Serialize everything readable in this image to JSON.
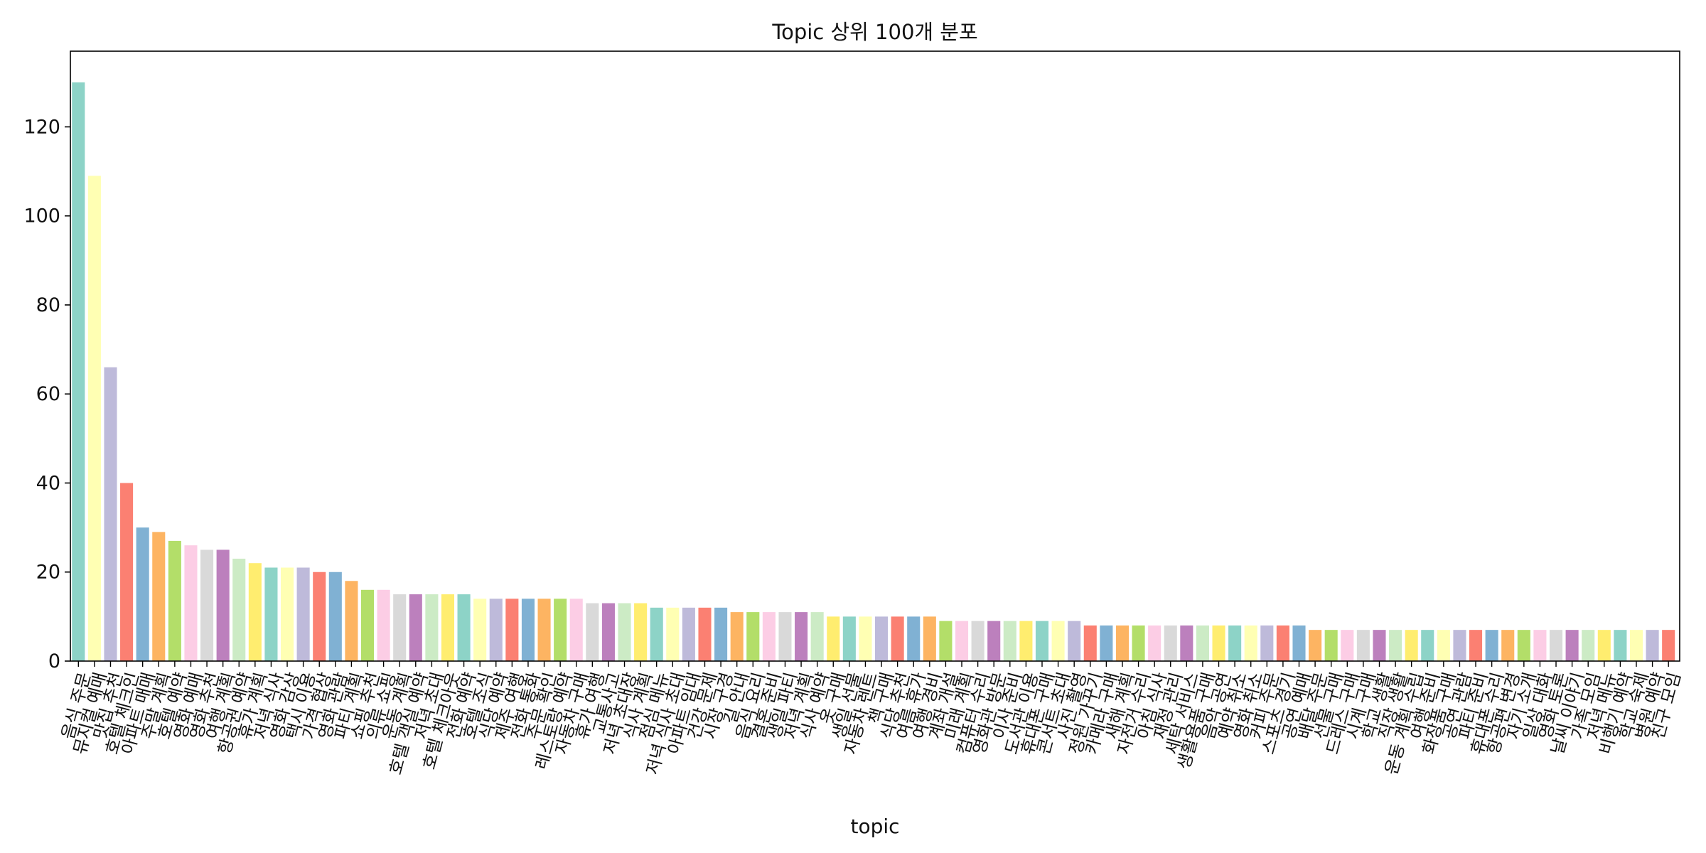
{
  "chart_data": {
    "type": "bar",
    "title": "Topic 상위 100개 분포",
    "xlabel": "topic",
    "ylabel": "",
    "ylim": [
      0,
      137
    ],
    "yticks": [
      0,
      20,
      40,
      60,
      80,
      100,
      120
    ],
    "palette": [
      "#8dd3c7",
      "#ffffb3",
      "#bebada",
      "#fb8072",
      "#80b1d3",
      "#fdb462",
      "#b3de69",
      "#fccde5",
      "#d9d9d9",
      "#bc80bd",
      "#ccebc5",
      "#ffed6f"
    ],
    "categories": [
      "음식 주문",
      "뮤지컬 예매",
      "맛집 추천",
      "호텔 체크인",
      "아파트 매매",
      "주말 계획",
      "호텔 예약",
      "영화 예매",
      "영화 추천",
      "여행 계획",
      "항공권 예약",
      "휴가 계획",
      "저녁 식사",
      "영화 감상",
      "택시 이용",
      "가격 협상",
      "영화 관람",
      "파티 계획",
      "쇼핑 추천",
      "의류 쇼핑",
      "운동 계획",
      "호텔 객실 예약",
      "저녁 초대",
      "호텔 체크아웃",
      "전화 예약",
      "호텔 조식",
      "식당 예약",
      "제주 여행",
      "전화 통화",
      "주문 확인",
      "레스토랑 예약",
      "자동차 구매",
      "휴가 여행",
      "교통사고",
      "저녁 초대장",
      "식사 계획",
      "점심 메뉴",
      "저녁 식사 초대",
      "아파트 임대",
      "건강 문제",
      "시장 구경",
      "길 안내",
      "음식 요리",
      "결혼 준비",
      "생일 파티",
      "저녁 계획",
      "식사 예약",
      "옷 구매",
      "생일 선물",
      "자동차 렌트",
      "책 구매",
      "식당 추천",
      "여름 휴가",
      "여행 경비",
      "계좌 개설",
      "미래 계획",
      "컴퓨터 수리",
      "영화관 방문",
      "이사 준비",
      "도서관 이용",
      "휴대폰 구매",
      "콘서트 초대",
      "사진 촬영",
      "정원 가꾸기",
      "카메라 구매",
      "새해 계획",
      "자전거 수리",
      "아침 식사",
      "재정 관리",
      "세탁 서비스",
      "생활용품 구매",
      "음악 공연",
      "예약 취소",
      "영화 취소",
      "커피 주문",
      "스포츠 경기",
      "공연 예매",
      "배달 주문",
      "선물 구매",
      "드레스 구매",
      "시계 구매",
      "학교 생활",
      "직장 생활",
      "운동 계획 수립",
      "여행 준비",
      "화장품 구매",
      "공연 관람",
      "파티 준비",
      "휴대폰 수리",
      "항공편 변경",
      "자기 소개",
      "일상 대화",
      "영화 토론",
      "날씨 이야기",
      "가족 모임",
      "저녁 메뉴",
      "비행기 예약",
      "학교 숙제",
      "병원 예약",
      "친구 모임"
    ],
    "values": [
      130,
      109,
      66,
      40,
      30,
      29,
      27,
      26,
      25,
      25,
      23,
      22,
      21,
      21,
      21,
      20,
      20,
      18,
      16,
      16,
      15,
      15,
      15,
      15,
      15,
      14,
      14,
      14,
      14,
      14,
      14,
      14,
      13,
      13,
      13,
      13,
      12,
      12,
      12,
      12,
      12,
      11,
      11,
      11,
      11,
      11,
      11,
      10,
      10,
      10,
      10,
      10,
      10,
      10,
      9,
      9,
      9,
      9,
      9,
      9,
      9,
      9,
      9,
      8,
      8,
      8,
      8,
      8,
      8,
      8,
      8,
      8,
      8,
      8,
      8,
      8,
      8,
      7,
      7,
      7,
      7,
      7,
      7,
      7,
      7,
      7,
      7,
      7,
      7,
      7,
      7,
      7,
      7,
      7,
      7,
      7,
      7,
      7,
      7,
      7
    ]
  }
}
